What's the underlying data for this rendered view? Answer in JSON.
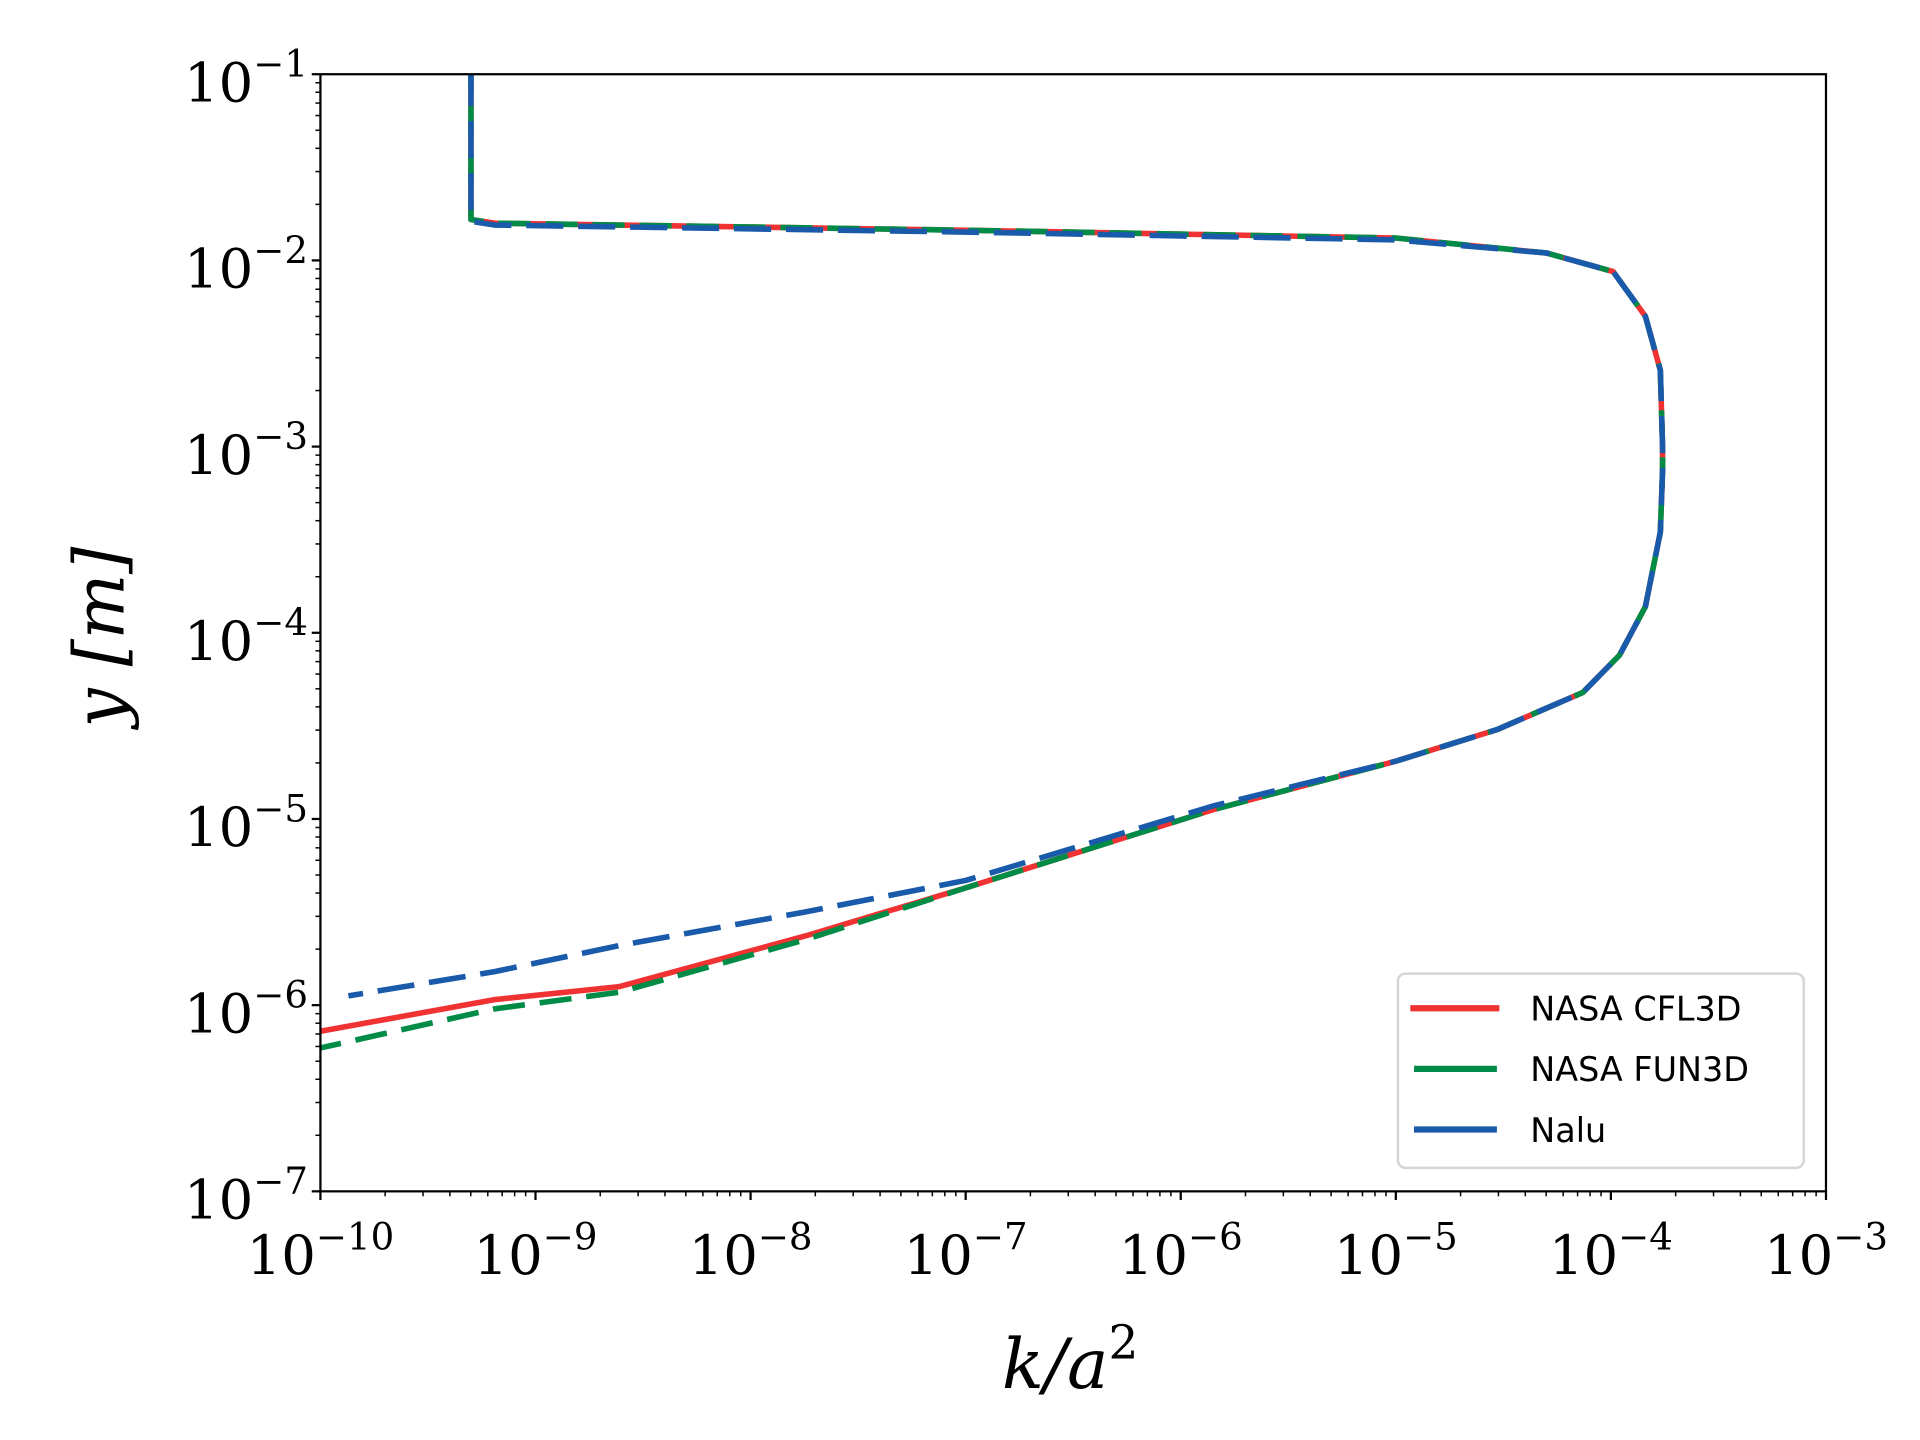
{
  "chart_data": {
    "type": "line",
    "title": "",
    "xlabel": "k/a²",
    "xlabel_parts": {
      "base": "k/a",
      "sup": "2"
    },
    "ylabel": "y [m]",
    "xscale": "log",
    "yscale": "log",
    "xlim": [
      1e-10,
      0.001
    ],
    "ylim": [
      1e-07,
      0.1
    ],
    "x_ticks": [
      {
        "base": "10",
        "exp": "−10",
        "log": -10
      },
      {
        "base": "10",
        "exp": "−9",
        "log": -9
      },
      {
        "base": "10",
        "exp": "−8",
        "log": -8
      },
      {
        "base": "10",
        "exp": "−7",
        "log": -7
      },
      {
        "base": "10",
        "exp": "−6",
        "log": -6
      },
      {
        "base": "10",
        "exp": "−5",
        "log": -5
      },
      {
        "base": "10",
        "exp": "−4",
        "log": -4
      },
      {
        "base": "10",
        "exp": "−3",
        "log": -3
      }
    ],
    "y_ticks": [
      {
        "base": "10",
        "exp": "−7",
        "log": -7
      },
      {
        "base": "10",
        "exp": "−6",
        "log": -6
      },
      {
        "base": "10",
        "exp": "−5",
        "log": -5
      },
      {
        "base": "10",
        "exp": "−4",
        "log": -4
      },
      {
        "base": "10",
        "exp": "−3",
        "log": -3
      },
      {
        "base": "10",
        "exp": "−2",
        "log": -2
      },
      {
        "base": "10",
        "exp": "−1",
        "log": -1
      }
    ],
    "grid": false,
    "legend_position": "bottom-right",
    "series": [
      {
        "name": "NASA CFL3D",
        "color": "#f03232",
        "style": "solid",
        "log10_x": [
          -10,
          -9.19,
          -8.61,
          -7.75,
          -7.0,
          -5.85,
          -5.0,
          -4.53,
          -4.13,
          -3.96,
          -3.84,
          -3.77,
          -3.76,
          -3.76,
          -3.77,
          -3.84,
          -3.99,
          -4.3,
          -5.0,
          -6.89,
          -9.19,
          -9.3,
          -9.3
        ],
        "log10_y": [
          -6.14,
          -5.97,
          -5.9,
          -5.63,
          -5.37,
          -4.95,
          -4.69,
          -4.52,
          -4.32,
          -4.12,
          -3.86,
          -3.46,
          -3.13,
          -3.0,
          -2.59,
          -2.3,
          -2.06,
          -1.96,
          -1.88,
          -1.84,
          -1.8,
          -1.78,
          -1.0
        ]
      },
      {
        "name": "NASA FUN3D",
        "color": "#008c46",
        "style": "dashed",
        "log10_x": [
          -10,
          -9.19,
          -8.61,
          -7.75,
          -7.0,
          -5.85,
          -5.0,
          -4.53,
          -4.13,
          -3.96,
          -3.84,
          -3.77,
          -3.76,
          -3.76,
          -3.77,
          -3.84,
          -3.99,
          -4.3,
          -5.0,
          -6.89,
          -9.19,
          -9.3,
          -9.3
        ],
        "log10_y": [
          -6.23,
          -6.02,
          -5.93,
          -5.65,
          -5.37,
          -4.95,
          -4.69,
          -4.52,
          -4.32,
          -4.12,
          -3.86,
          -3.46,
          -3.13,
          -3.0,
          -2.59,
          -2.3,
          -2.06,
          -1.96,
          -1.88,
          -1.84,
          -1.8,
          -1.78,
          -1.0
        ]
      },
      {
        "name": "Nalu",
        "color": "#1a5aaa",
        "style": "dashed",
        "log10_x": [
          -9.87,
          -9.19,
          -8.61,
          -7.75,
          -7.0,
          -5.85,
          -5.0,
          -4.53,
          -4.13,
          -3.96,
          -3.84,
          -3.77,
          -3.76,
          -3.76,
          -3.77,
          -3.84,
          -3.99,
          -4.3,
          -5.0,
          -6.89,
          -9.19,
          -9.3,
          -9.3
        ],
        "log10_y": [
          -5.95,
          -5.82,
          -5.68,
          -5.5,
          -5.33,
          -4.93,
          -4.69,
          -4.52,
          -4.32,
          -4.12,
          -3.86,
          -3.46,
          -3.13,
          -3.0,
          -2.59,
          -2.3,
          -2.06,
          -1.96,
          -1.89,
          -1.85,
          -1.81,
          -1.79,
          -1.0
        ]
      }
    ]
  }
}
